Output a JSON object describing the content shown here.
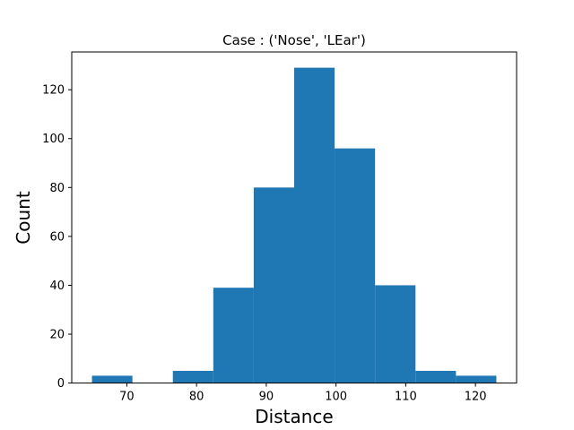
{
  "chart_data": {
    "type": "bar",
    "title": "Case : ('Nose', 'LEar')",
    "xlabel": "Distance",
    "ylabel": "Count",
    "bins": [
      {
        "x0": 65.0,
        "x1": 70.8,
        "count": 3
      },
      {
        "x0": 70.8,
        "x1": 76.6,
        "count": 0
      },
      {
        "x0": 76.6,
        "x1": 82.4,
        "count": 5
      },
      {
        "x0": 82.4,
        "x1": 88.2,
        "count": 39
      },
      {
        "x0": 88.2,
        "x1": 94.0,
        "count": 80
      },
      {
        "x0": 94.0,
        "x1": 99.8,
        "count": 129
      },
      {
        "x0": 99.8,
        "x1": 105.6,
        "count": 96
      },
      {
        "x0": 105.6,
        "x1": 111.4,
        "count": 40
      },
      {
        "x0": 111.4,
        "x1": 117.2,
        "count": 5
      },
      {
        "x0": 117.2,
        "x1": 123.0,
        "count": 3
      }
    ],
    "xlim": [
      62.1,
      125.9
    ],
    "ylim": [
      0,
      135.45
    ],
    "xticks": [
      70,
      80,
      90,
      100,
      110,
      120
    ],
    "yticks": [
      0,
      20,
      40,
      60,
      80,
      100,
      120
    ],
    "bar_color": "#1f77b4",
    "grid": false,
    "legend": "none"
  }
}
